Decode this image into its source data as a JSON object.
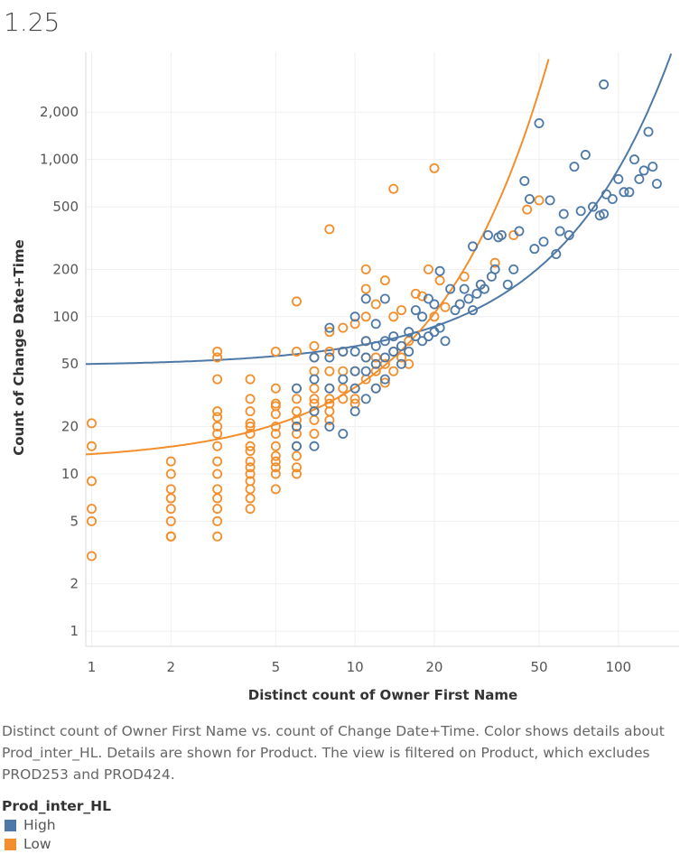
{
  "title": "1.25",
  "caption": "Distinct count of Owner First Name vs. count of Change Date+Time.  Color shows details about Prod_inter_HL.  Details are shown for Product. The view is filtered on Product, which excludes PROD253 and PROD424.",
  "legend": {
    "title": "Prod_inter_HL",
    "items": [
      {
        "label": "High",
        "color": "#4e79a7"
      },
      {
        "label": "Low",
        "color": "#f28e2b"
      }
    ]
  },
  "chart_data": {
    "type": "scatter",
    "xlabel": "Distinct count of Owner First Name",
    "ylabel": "Count of Change Date+Time",
    "x_scale": "log",
    "y_scale": "log",
    "xlim": [
      0.95,
      170
    ],
    "ylim": [
      0.8,
      4800
    ],
    "x_ticks": [
      1,
      2,
      5,
      10,
      20,
      50,
      100
    ],
    "x_tick_labels": [
      "1",
      "2",
      "5",
      "10",
      "20",
      "50",
      "100"
    ],
    "y_ticks": [
      1,
      2,
      5,
      10,
      20,
      50,
      100,
      200,
      500,
      1000,
      2000
    ],
    "y_tick_labels": [
      "1",
      "2",
      "5",
      "10",
      "20",
      "50",
      "100",
      "200",
      "500",
      "1,000",
      "2,000"
    ],
    "grid": true,
    "series": [
      {
        "name": "High",
        "color": "#4e79a7",
        "x": [
          6,
          6,
          6,
          7,
          7,
          7,
          7,
          8,
          8,
          8,
          8,
          9,
          9,
          9,
          10,
          10,
          10,
          10,
          10,
          11,
          11,
          11,
          11,
          11,
          12,
          12,
          12,
          12,
          13,
          13,
          13,
          13,
          14,
          14,
          15,
          15,
          16,
          16,
          17,
          17,
          18,
          18,
          19,
          19,
          20,
          20,
          21,
          21,
          22,
          23,
          24,
          25,
          26,
          27,
          28,
          28,
          29,
          30,
          31,
          32,
          33,
          34,
          35,
          36,
          38,
          40,
          42,
          44,
          46,
          48,
          50,
          52,
          55,
          58,
          60,
          62,
          65,
          68,
          72,
          75,
          80,
          85,
          88,
          90,
          95,
          100,
          105,
          110,
          115,
          120,
          125,
          130,
          135,
          140,
          88
        ],
        "y": [
          15,
          20,
          35,
          15,
          25,
          40,
          55,
          20,
          35,
          55,
          85,
          18,
          40,
          60,
          25,
          35,
          45,
          60,
          100,
          30,
          45,
          55,
          70,
          130,
          35,
          50,
          65,
          90,
          40,
          55,
          70,
          130,
          60,
          75,
          50,
          65,
          60,
          80,
          75,
          110,
          70,
          100,
          75,
          130,
          80,
          120,
          85,
          195,
          70,
          150,
          110,
          120,
          150,
          130,
          110,
          280,
          140,
          160,
          150,
          330,
          180,
          200,
          320,
          330,
          160,
          200,
          350,
          730,
          560,
          270,
          1700,
          300,
          550,
          250,
          350,
          450,
          330,
          900,
          470,
          1070,
          500,
          440,
          450,
          600,
          560,
          750,
          620,
          620,
          1000,
          750,
          850,
          1500,
          900,
          700,
          3000
        ]
      },
      {
        "name": "Low",
        "color": "#f28e2b",
        "x": [
          1,
          1,
          1,
          1,
          1,
          1,
          2,
          2,
          2,
          2,
          2,
          2,
          2,
          2,
          2,
          3,
          3,
          3,
          3,
          3,
          3,
          3,
          3,
          3,
          3,
          3,
          3,
          3,
          3,
          3,
          4,
          4,
          4,
          4,
          4,
          4,
          4,
          4,
          4,
          4,
          4,
          4,
          4,
          4,
          4,
          5,
          5,
          5,
          5,
          5,
          5,
          5,
          5,
          5,
          5,
          5,
          5,
          5,
          6,
          6,
          6,
          6,
          6,
          6,
          6,
          6,
          6,
          6,
          6,
          6,
          7,
          7,
          7,
          7,
          7,
          7,
          7,
          7,
          7,
          8,
          8,
          8,
          8,
          8,
          8,
          8,
          8,
          9,
          9,
          9,
          9,
          9,
          10,
          10,
          10,
          10,
          10,
          11,
          11,
          11,
          11,
          11,
          11,
          12,
          12,
          12,
          12,
          13,
          13,
          13,
          14,
          14,
          14,
          15,
          15,
          16,
          16,
          17,
          18,
          19,
          20,
          21,
          22,
          25,
          26,
          30,
          34,
          40,
          45,
          50,
          14,
          20,
          8
        ],
        "y": [
          21,
          15,
          9,
          6,
          5,
          3,
          12,
          10,
          8,
          7,
          6,
          5,
          4,
          4,
          4,
          60,
          55,
          40,
          25,
          20,
          15,
          12,
          10,
          8,
          7,
          6,
          5,
          4,
          23,
          18,
          40,
          30,
          25,
          20,
          18,
          15,
          14,
          12,
          11,
          10,
          9,
          8,
          7,
          6,
          21,
          60,
          35,
          28,
          24,
          20,
          18,
          15,
          13,
          12,
          11,
          10,
          8,
          27,
          125,
          60,
          35,
          30,
          25,
          22,
          20,
          18,
          15,
          13,
          11,
          10,
          65,
          55,
          45,
          35,
          30,
          28,
          25,
          22,
          18,
          80,
          60,
          45,
          35,
          30,
          28,
          25,
          22,
          85,
          60,
          45,
          35,
          30,
          90,
          45,
          35,
          30,
          28,
          200,
          150,
          100,
          70,
          55,
          40,
          120,
          55,
          45,
          35,
          170,
          50,
          38,
          100,
          60,
          45,
          110,
          55,
          70,
          50,
          140,
          135,
          200,
          100,
          170,
          115,
          120,
          180,
          160,
          220,
          330,
          480,
          550,
          650,
          880,
          360
        ]
      }
    ],
    "trend_lines": [
      {
        "name": "High",
        "color": "#4e79a7"
      },
      {
        "name": "Low",
        "color": "#f28e2b"
      }
    ]
  }
}
